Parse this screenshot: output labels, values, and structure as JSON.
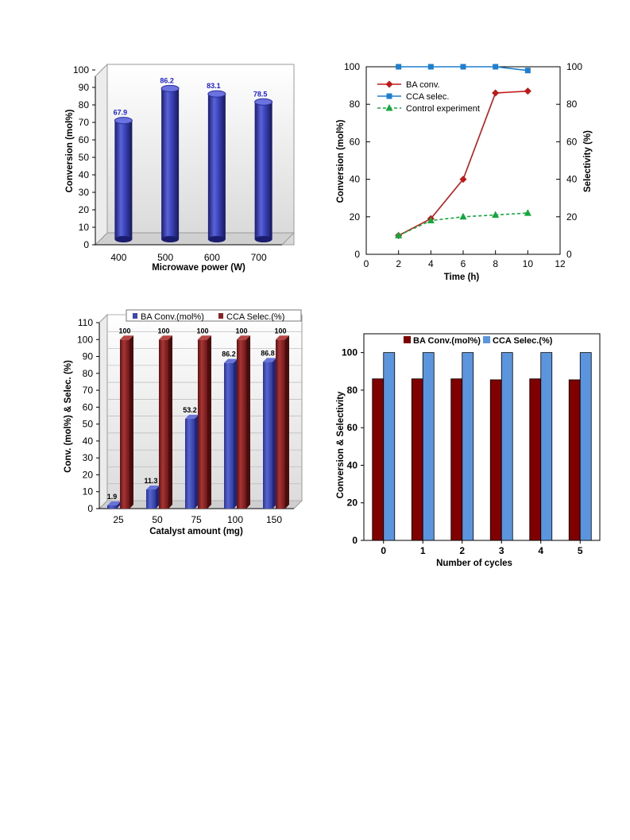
{
  "chart_data": [
    {
      "type": "bar",
      "title": "",
      "style": "3d-cylinder",
      "categories": [
        "400",
        "500",
        "600",
        "700"
      ],
      "series": [
        {
          "values": [
            67.9,
            86.2,
            83.1,
            78.5
          ],
          "labels": [
            "67.9",
            "86.2",
            "83.1",
            "78.5"
          ]
        }
      ],
      "xlabel": "Microwave power (W)",
      "ylabel": "Conversion (mol%)",
      "ylim": [
        0,
        100
      ],
      "yticks": [
        "0",
        "10",
        "20",
        "30",
        "40",
        "50",
        "60",
        "70",
        "80",
        "90",
        "100"
      ],
      "colors": {
        "bar": "#2b2f9c",
        "bar_light": "#5a63d8",
        "label": "#2020e0"
      },
      "grid": false
    },
    {
      "type": "line",
      "title": "",
      "x": [
        2,
        4,
        6,
        8,
        10
      ],
      "series": [
        {
          "name": "BA conv.",
          "axis": "left",
          "values": [
            10,
            19,
            40,
            86,
            87
          ],
          "color": "#c01818",
          "marker": "diamond",
          "dash": false
        },
        {
          "name": "CCA selec.",
          "axis": "right",
          "values": [
            100,
            100,
            100,
            100,
            98
          ],
          "color": "#1e7fd0",
          "marker": "square",
          "dash": false
        },
        {
          "name": "Control experiment",
          "axis": "left",
          "values": [
            10,
            18,
            20,
            21,
            22
          ],
          "color": "#14a83c",
          "marker": "triangle",
          "dash": true
        }
      ],
      "xlabel": "Time (h)",
      "ylabel": "Conversion (mol%)",
      "ylabel_right": "Selectivity (%)",
      "xlim": [
        0,
        12
      ],
      "ylim": [
        0,
        100
      ],
      "ylim_right": [
        0,
        100
      ],
      "xticks": [
        "0",
        "2",
        "4",
        "6",
        "8",
        "10",
        "12"
      ],
      "yticks": [
        "0",
        "20",
        "40",
        "60",
        "80",
        "100"
      ],
      "yticks_right": [
        "0",
        "20",
        "40",
        "60",
        "80",
        "100"
      ],
      "legend": "top-left",
      "grid": false
    },
    {
      "type": "bar",
      "title": "",
      "style": "3d-box",
      "categories": [
        "25",
        "50",
        "75",
        "100",
        "150"
      ],
      "series": [
        {
          "name": "BA Conv.(mol%)",
          "values": [
            1.9,
            11.3,
            53.2,
            86.2,
            86.8
          ],
          "labels": [
            "1.9",
            "11.3",
            "53.2",
            "86.2",
            "86.8"
          ],
          "color": "#3c48b0"
        },
        {
          "name": "CCA Selec.(%)",
          "values": [
            100,
            100,
            100,
            100,
            100
          ],
          "labels": [
            "100",
            "100",
            "100",
            "100",
            "100"
          ],
          "color": "#8c2323"
        }
      ],
      "xlabel": "Catalyst amount (mg)",
      "ylabel": "Conv. (mol%) & Selec. (%)",
      "ylim": [
        0,
        110
      ],
      "yticks": [
        "0",
        "10",
        "20",
        "30",
        "40",
        "50",
        "60",
        "70",
        "80",
        "90",
        "100",
        "110"
      ],
      "legend": "top",
      "grid": true
    },
    {
      "type": "bar",
      "title": "",
      "categories": [
        "0",
        "1",
        "2",
        "3",
        "4",
        "5"
      ],
      "series": [
        {
          "name": "BA Conv.(mol%)",
          "values": [
            86,
            86,
            86,
            85.5,
            86,
            85.5
          ],
          "color": "#800000"
        },
        {
          "name": "CCA Selec.(%)",
          "values": [
            100,
            100,
            100,
            100,
            100,
            100
          ],
          "color": "#5b95dd"
        }
      ],
      "xlabel": "Number of cycles",
      "ylabel": "Conversion & Selectivity",
      "ylim": [
        0,
        110
      ],
      "yticks": [
        "0",
        "20",
        "40",
        "60",
        "80",
        "100"
      ],
      "legend": "top",
      "grid": false
    }
  ]
}
